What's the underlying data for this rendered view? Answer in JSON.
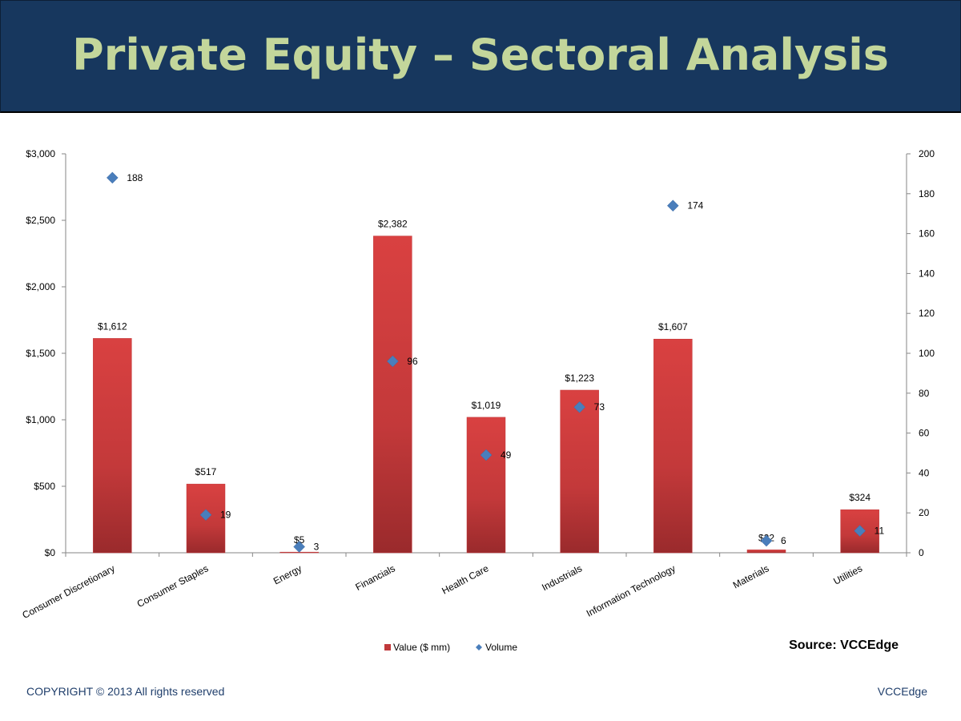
{
  "title": "Private Equity – Sectoral Analysis",
  "source": "Source: VCCEdge",
  "footer": {
    "copyright": "COPYRIGHT © 2013 All rights reserved",
    "brand": "VCCEdge"
  },
  "colors": {
    "title_bg": "#17375e",
    "title_text": "#c3d69b",
    "bar": "#c0393b",
    "marker": "#4a7ebb",
    "footer_text": "#1f3e6b"
  },
  "chart_data": {
    "type": "bar",
    "categories": [
      "Consumer Discretionary",
      "Consumer Staples",
      "Energy",
      "Financials",
      "Health Care",
      "Industrials",
      "Information Technology",
      "Materials",
      "Utilities"
    ],
    "series": [
      {
        "name": "Value  ($ mm)",
        "type": "bar",
        "axis": "left",
        "values": [
          1612,
          517,
          5,
          2382,
          1019,
          1223,
          1607,
          22,
          324
        ],
        "labels": [
          "$1,612",
          "$517",
          "$5",
          "$2,382",
          "$1,019",
          "$1,223",
          "$1,607",
          "$22",
          "$324"
        ]
      },
      {
        "name": "Volume",
        "type": "scatter",
        "axis": "right",
        "values": [
          188,
          19,
          3,
          96,
          49,
          73,
          174,
          6,
          11
        ],
        "labels": [
          "188",
          "19",
          "3",
          "96",
          "49",
          "73",
          "174",
          "6",
          "11"
        ]
      }
    ],
    "y_left": {
      "lim": [
        0,
        3000
      ],
      "ticks": [
        "$0",
        "$500",
        "$1,000",
        "$1,500",
        "$2,000",
        "$2,500",
        "$3,000"
      ]
    },
    "y_right": {
      "lim": [
        0,
        200
      ],
      "ticks": [
        "0",
        "20",
        "40",
        "60",
        "80",
        "100",
        "120",
        "140",
        "160",
        "180",
        "200"
      ]
    },
    "legend": "bottom",
    "grid": false
  }
}
